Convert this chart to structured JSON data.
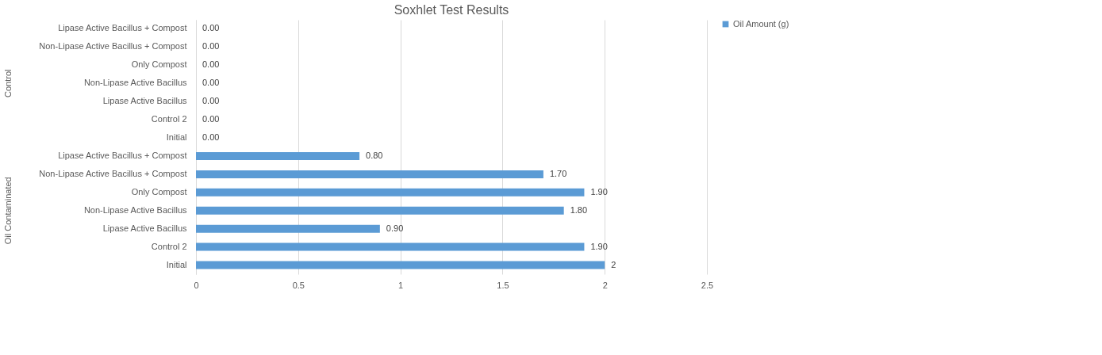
{
  "chart_data": {
    "type": "bar",
    "orientation": "horizontal",
    "title": "Soxhlet Test Results",
    "categories": [
      "Lipase Active Bacillus + Compost",
      "Non-Lipase Active Bacillus + Compost",
      "Only Compost",
      "Non-Lipase Active Bacillus",
      "Lipase Active Bacillus",
      "Control 2",
      "Initial",
      "Lipase Active Bacillus + Compost",
      "Non-Lipase Active Bacillus + Compost",
      "Only Compost",
      "Non-Lipase Active Bacillus",
      "Lipase Active Bacillus",
      "Control 2",
      "Initial"
    ],
    "series": [
      {
        "name": "Oil Amount (g)",
        "color": "#5b9bd5",
        "values": [
          0,
          0,
          0,
          0,
          0,
          0,
          0,
          0.8,
          1.7,
          1.9,
          1.8,
          0.9,
          1.9,
          2
        ]
      }
    ],
    "value_labels": [
      "0.00",
      "0.00",
      "0.00",
      "0.00",
      "0.00",
      "0.00",
      "0.00",
      "0.80",
      "1.70",
      "1.90",
      "1.80",
      "0.90",
      "1.90",
      "2"
    ],
    "annotations": [
      "Control",
      "Oil Contaminated"
    ],
    "xlim": [
      0,
      2.5
    ],
    "xticks": [
      0,
      0.5,
      1,
      1.5,
      2,
      2.5
    ],
    "grid": "x",
    "legend": "right"
  }
}
